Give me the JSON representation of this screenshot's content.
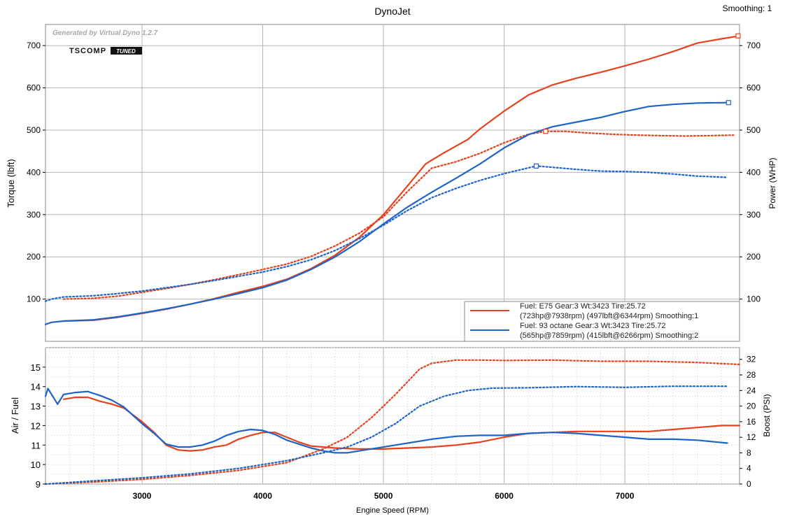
{
  "header": {
    "title": "DynoJet",
    "smoothing_label": "Smoothing: 1"
  },
  "watermark": {
    "generated_by": "Generated by Virtual Dyno 1.2.7",
    "logo_text": "TSCOMP",
    "logo_badge": "TUNED"
  },
  "colors": {
    "e75": "#e8401c",
    "octane93": "#1c64c8",
    "grid": "#b4b4b4",
    "minor_grid": "#c8c8c8",
    "axis": "#000000"
  },
  "legend": {
    "entries": [
      {
        "series": "e75",
        "line1": "Fuel: E75 Gear:3 Wt:3423 Tire:25.72",
        "line2": "(723hp@7938rpm) (497lbft@6344rpm) Smoothing:1"
      },
      {
        "series": "octane93",
        "line1": "Fuel: 93 octane Gear:3 Wt:3423 Tire:25.72",
        "line2": "(565hp@7859rpm) (415lbft@6266rpm) Smoothing:2"
      }
    ]
  },
  "chart_data": [
    {
      "type": "line",
      "title": "DynoJet",
      "xlabel": "Engine Speed (RPM)",
      "ylabel": "Torque (lbft)",
      "y2label": "Power (WHP)",
      "xlim": [
        2200,
        7950
      ],
      "ylim": [
        0,
        750
      ],
      "y2lim": [
        0,
        750
      ],
      "xticks": [
        3000,
        4000,
        5000,
        6000,
        7000
      ],
      "yticks": [
        100,
        200,
        300,
        400,
        500,
        600,
        700
      ],
      "y2ticks": [
        100,
        200,
        300,
        400,
        500,
        600,
        700
      ],
      "grid": true,
      "legend_position": "bottom-right",
      "series": [
        {
          "name": "E75 Power (WHP)",
          "color_key": "e75",
          "style": "solid",
          "axis": "right",
          "x": [
            2350,
            2600,
            2800,
            3000,
            3200,
            3400,
            3600,
            3800,
            4000,
            4200,
            4400,
            4600,
            4800,
            5000,
            5200,
            5350,
            5500,
            5700,
            5800,
            6000,
            6200,
            6400,
            6600,
            6800,
            7000,
            7200,
            7400,
            7600,
            7800,
            7950
          ],
          "values": [
            48,
            50,
            57,
            66,
            76,
            88,
            101,
            116,
            130,
            147,
            172,
            204,
            246,
            300,
            368,
            420,
            446,
            478,
            503,
            545,
            583,
            607,
            623,
            637,
            652,
            668,
            686,
            706,
            716,
            723
          ]
        },
        {
          "name": "E75 Torque (lbft)",
          "color_key": "e75",
          "style": "dotted",
          "axis": "left",
          "x": [
            2350,
            2600,
            2800,
            3000,
            3200,
            3400,
            3600,
            3800,
            4000,
            4200,
            4400,
            4600,
            4800,
            5000,
            5200,
            5400,
            5600,
            5800,
            6000,
            6200,
            6344,
            6500,
            6700,
            6900,
            7100,
            7300,
            7500,
            7700,
            7900
          ],
          "values": [
            100,
            102,
            107,
            116,
            125,
            135,
            146,
            158,
            170,
            183,
            201,
            226,
            256,
            295,
            355,
            410,
            425,
            445,
            470,
            490,
            497,
            497,
            493,
            490,
            488,
            487,
            486,
            487,
            488
          ]
        },
        {
          "name": "93 octane Power (WHP)",
          "color_key": "octane93",
          "style": "solid",
          "axis": "right",
          "x": [
            2200,
            2250,
            2350,
            2600,
            2800,
            3000,
            3200,
            3400,
            3600,
            3800,
            4000,
            4200,
            4400,
            4600,
            4800,
            5000,
            5200,
            5400,
            5600,
            5800,
            6000,
            6200,
            6400,
            6600,
            6800,
            7000,
            7200,
            7400,
            7600,
            7859
          ],
          "values": [
            40,
            45,
            48,
            51,
            58,
            67,
            77,
            88,
            100,
            113,
            127,
            145,
            170,
            200,
            236,
            278,
            318,
            353,
            386,
            420,
            458,
            489,
            508,
            519,
            530,
            544,
            556,
            561,
            564,
            565
          ]
        },
        {
          "name": "93 octane Torque (lbft)",
          "color_key": "octane93",
          "style": "dotted",
          "axis": "left",
          "x": [
            2200,
            2250,
            2350,
            2600,
            2800,
            3000,
            3200,
            3400,
            3600,
            3800,
            4000,
            4200,
            4400,
            4600,
            4800,
            5000,
            5200,
            5400,
            5600,
            5800,
            6000,
            6266,
            6400,
            6600,
            6800,
            7000,
            7200,
            7400,
            7600,
            7850
          ],
          "values": [
            95,
            100,
            105,
            108,
            113,
            119,
            127,
            135,
            144,
            154,
            164,
            177,
            193,
            215,
            243,
            275,
            310,
            340,
            362,
            381,
            397,
            415,
            412,
            407,
            403,
            402,
            400,
            396,
            391,
            388
          ]
        }
      ],
      "markers": [
        {
          "series": "E75 Power (WHP)",
          "x": 7938,
          "y": 723
        },
        {
          "series": "E75 Torque (lbft)",
          "x": 6344,
          "y": 497
        },
        {
          "series": "93 octane Power (WHP)",
          "x": 7859,
          "y": 565
        },
        {
          "series": "93 octane Torque (lbft)",
          "x": 6266,
          "y": 415
        }
      ]
    },
    {
      "type": "line",
      "xlabel": "Engine Speed (RPM)",
      "ylabel": "Air / Fuel",
      "y2label": "Boost (PSI)",
      "xlim": [
        2200,
        7950
      ],
      "ylim": [
        9,
        16
      ],
      "y2lim": [
        0,
        35
      ],
      "xticks": [
        3000,
        4000,
        5000,
        6000,
        7000
      ],
      "yticks": [
        9,
        10,
        11,
        12,
        13,
        14,
        15
      ],
      "y2ticks": [
        0,
        4,
        8,
        12,
        16,
        20,
        24,
        28,
        32
      ],
      "grid": true,
      "series": [
        {
          "name": "E75 Air/Fuel",
          "color_key": "e75",
          "style": "solid",
          "axis": "left",
          "x": [
            2350,
            2450,
            2550,
            2650,
            2750,
            2850,
            3000,
            3100,
            3200,
            3300,
            3400,
            3500,
            3600,
            3700,
            3800,
            3900,
            4000,
            4100,
            4200,
            4300,
            4400,
            4600,
            4800,
            5000,
            5200,
            5400,
            5600,
            5800,
            6000,
            6200,
            6400,
            6600,
            6800,
            7000,
            7200,
            7400,
            7600,
            7800,
            7950
          ],
          "values": [
            13.35,
            13.45,
            13.45,
            13.25,
            13.1,
            12.9,
            12.2,
            11.65,
            11.0,
            10.75,
            10.7,
            10.75,
            10.9,
            11.0,
            11.3,
            11.5,
            11.65,
            11.65,
            11.4,
            11.15,
            10.95,
            10.85,
            10.8,
            10.8,
            10.85,
            10.9,
            11.0,
            11.15,
            11.4,
            11.6,
            11.65,
            11.7,
            11.7,
            11.7,
            11.7,
            11.8,
            11.9,
            12.0,
            12.0
          ]
        },
        {
          "name": "93 octane Air/Fuel",
          "color_key": "octane93",
          "style": "solid",
          "axis": "left",
          "x": [
            2200,
            2220,
            2260,
            2300,
            2350,
            2450,
            2550,
            2650,
            2750,
            2850,
            3000,
            3100,
            3200,
            3300,
            3400,
            3500,
            3600,
            3700,
            3800,
            3900,
            4000,
            4100,
            4200,
            4300,
            4400,
            4500,
            4600,
            4700,
            4800,
            5000,
            5200,
            5400,
            5600,
            5800,
            6000,
            6200,
            6400,
            6600,
            6800,
            7000,
            7200,
            7400,
            7600,
            7850
          ],
          "values": [
            13.5,
            13.9,
            13.5,
            13.1,
            13.6,
            13.7,
            13.75,
            13.55,
            13.3,
            12.95,
            12.1,
            11.6,
            11.05,
            10.9,
            10.9,
            11.0,
            11.2,
            11.5,
            11.7,
            11.8,
            11.75,
            11.55,
            11.25,
            11.05,
            10.85,
            10.7,
            10.6,
            10.6,
            10.7,
            10.9,
            11.1,
            11.3,
            11.45,
            11.5,
            11.5,
            11.6,
            11.65,
            11.6,
            11.5,
            11.4,
            11.3,
            11.3,
            11.25,
            11.1
          ]
        },
        {
          "name": "E75 Boost (PSI)",
          "color_key": "e75",
          "style": "dotted",
          "axis": "right",
          "x": [
            2200,
            2600,
            3000,
            3400,
            3800,
            4200,
            4500,
            4700,
            4900,
            5100,
            5300,
            5400,
            5600,
            5800,
            6000,
            6400,
            6800,
            7200,
            7600,
            7950
          ],
          "values": [
            0,
            0.5,
            1.2,
            2.2,
            3.5,
            5.5,
            9,
            12,
            17,
            23,
            29.5,
            31,
            31.8,
            31.8,
            31.7,
            31.8,
            31.5,
            31.5,
            31.2,
            30.7
          ]
        },
        {
          "name": "93 octane Boost (PSI)",
          "color_key": "octane93",
          "style": "dotted",
          "axis": "right",
          "x": [
            2200,
            2600,
            3000,
            3400,
            3800,
            4200,
            4500,
            4700,
            4900,
            5100,
            5300,
            5500,
            5700,
            5900,
            6200,
            6600,
            7000,
            7400,
            7850
          ],
          "values": [
            0,
            0.8,
            1.6,
            2.6,
            4,
            6,
            8,
            9.5,
            12,
            15.5,
            20,
            22.5,
            24,
            24.6,
            24.7,
            25,
            24.8,
            25.1,
            25.1
          ]
        }
      ]
    }
  ]
}
